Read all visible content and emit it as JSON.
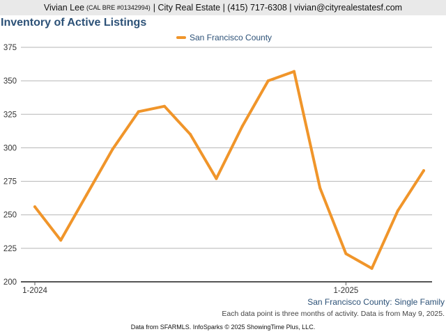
{
  "header": {
    "agent_name": "Vivian Lee",
    "license": "(CAL BRE #01342994)",
    "details": "| City Real Estate | (415) 717-6308 | vivian@cityrealestatesf.com"
  },
  "colors": {
    "series": "#f0952a",
    "title": "#2c5177",
    "header_bg": "#e9e9e9",
    "grid": "#b5b5b5",
    "axis": "#555555"
  },
  "chart_data": {
    "type": "line",
    "title": "Inventory of Active Listings",
    "subtitle": "San Francisco County: Single Family",
    "xlabel": "",
    "ylabel": "",
    "ylim": [
      200,
      375
    ],
    "yticks": [
      200,
      225,
      250,
      275,
      300,
      325,
      350,
      375
    ],
    "xticks": [
      {
        "label": "1-2024",
        "index": 0
      },
      {
        "label": "1-2025",
        "index": 12
      }
    ],
    "grid": true,
    "legend_position": "top-center",
    "series": [
      {
        "name": "San Francisco County",
        "color": "#f0952a",
        "values": [
          256,
          231,
          265,
          299,
          327,
          331,
          310,
          277,
          316,
          350,
          357,
          270,
          221,
          210,
          253,
          283
        ]
      }
    ]
  },
  "footnote": "Each data point is three months of activity. Data is from May 9, 2025.",
  "footer": "Data from SFARMLS. InfoSparks © 2025 ShowingTime Plus, LLC."
}
